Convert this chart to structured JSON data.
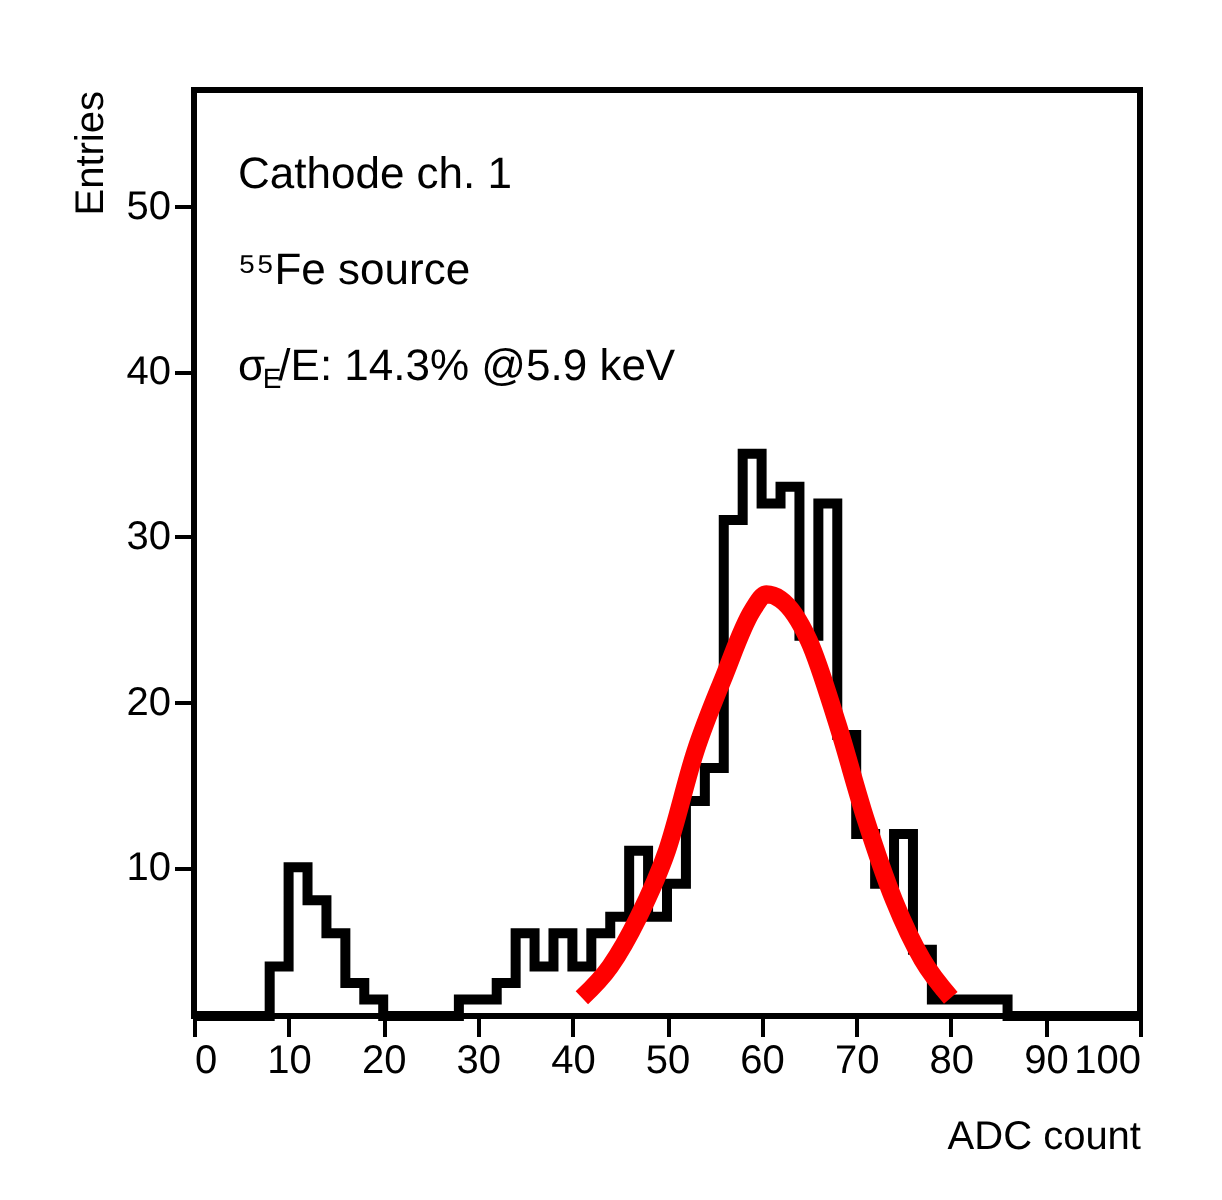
{
  "chart_data": {
    "type": "histogram",
    "xlabel": "ADC count",
    "ylabel": "Entries",
    "annotations": [
      "Cathode ch. 1",
      "⁵⁵Fe source",
      "σ$_{E}$/E: 14.3% @5.9 keV"
    ],
    "bins": [
      0,
      2,
      4,
      6,
      8,
      10,
      12,
      14,
      16,
      18,
      20,
      22,
      24,
      26,
      28,
      30,
      32,
      34,
      36,
      38,
      40,
      42,
      44,
      46,
      48,
      50,
      52,
      54,
      56,
      58,
      60,
      62,
      64,
      66,
      68,
      70,
      72,
      74,
      76,
      78,
      80,
      82,
      84,
      86,
      88,
      90,
      92,
      94,
      96,
      98,
      100
    ],
    "values": [
      1,
      1,
      1,
      1,
      4,
      10,
      8,
      6,
      3,
      2,
      1,
      1,
      1,
      1,
      2,
      2,
      3,
      6,
      4,
      6,
      4,
      6,
      7,
      11,
      7,
      9,
      14,
      16,
      31,
      35,
      32,
      33,
      24,
      32,
      18,
      12,
      9,
      12,
      5,
      2,
      2,
      2,
      2,
      1,
      1,
      1,
      1,
      1,
      1,
      1
    ],
    "color": "#000000",
    "series": [
      {
        "type": "line",
        "color": "#ff0000",
        "x": [
          41,
          44,
          47,
          50,
          53,
          56,
          59,
          60.5,
          62,
          65,
          68,
          71,
          74,
          77,
          80
        ],
        "values": [
          2.1,
          4.0,
          7.0,
          11.0,
          17.0,
          21.5,
          25.5,
          26.5,
          26.2,
          23.7,
          18.7,
          12.9,
          8.0,
          4.4,
          2.1
        ]
      }
    ],
    "xlim": [
      0,
      100
    ],
    "ylim": [
      1,
      57
    ],
    "xticks": [
      0,
      10,
      20,
      30,
      40,
      50,
      60,
      70,
      80,
      90,
      100
    ],
    "yticks": [
      10,
      20,
      30,
      40,
      50
    ],
    "grid": false
  }
}
